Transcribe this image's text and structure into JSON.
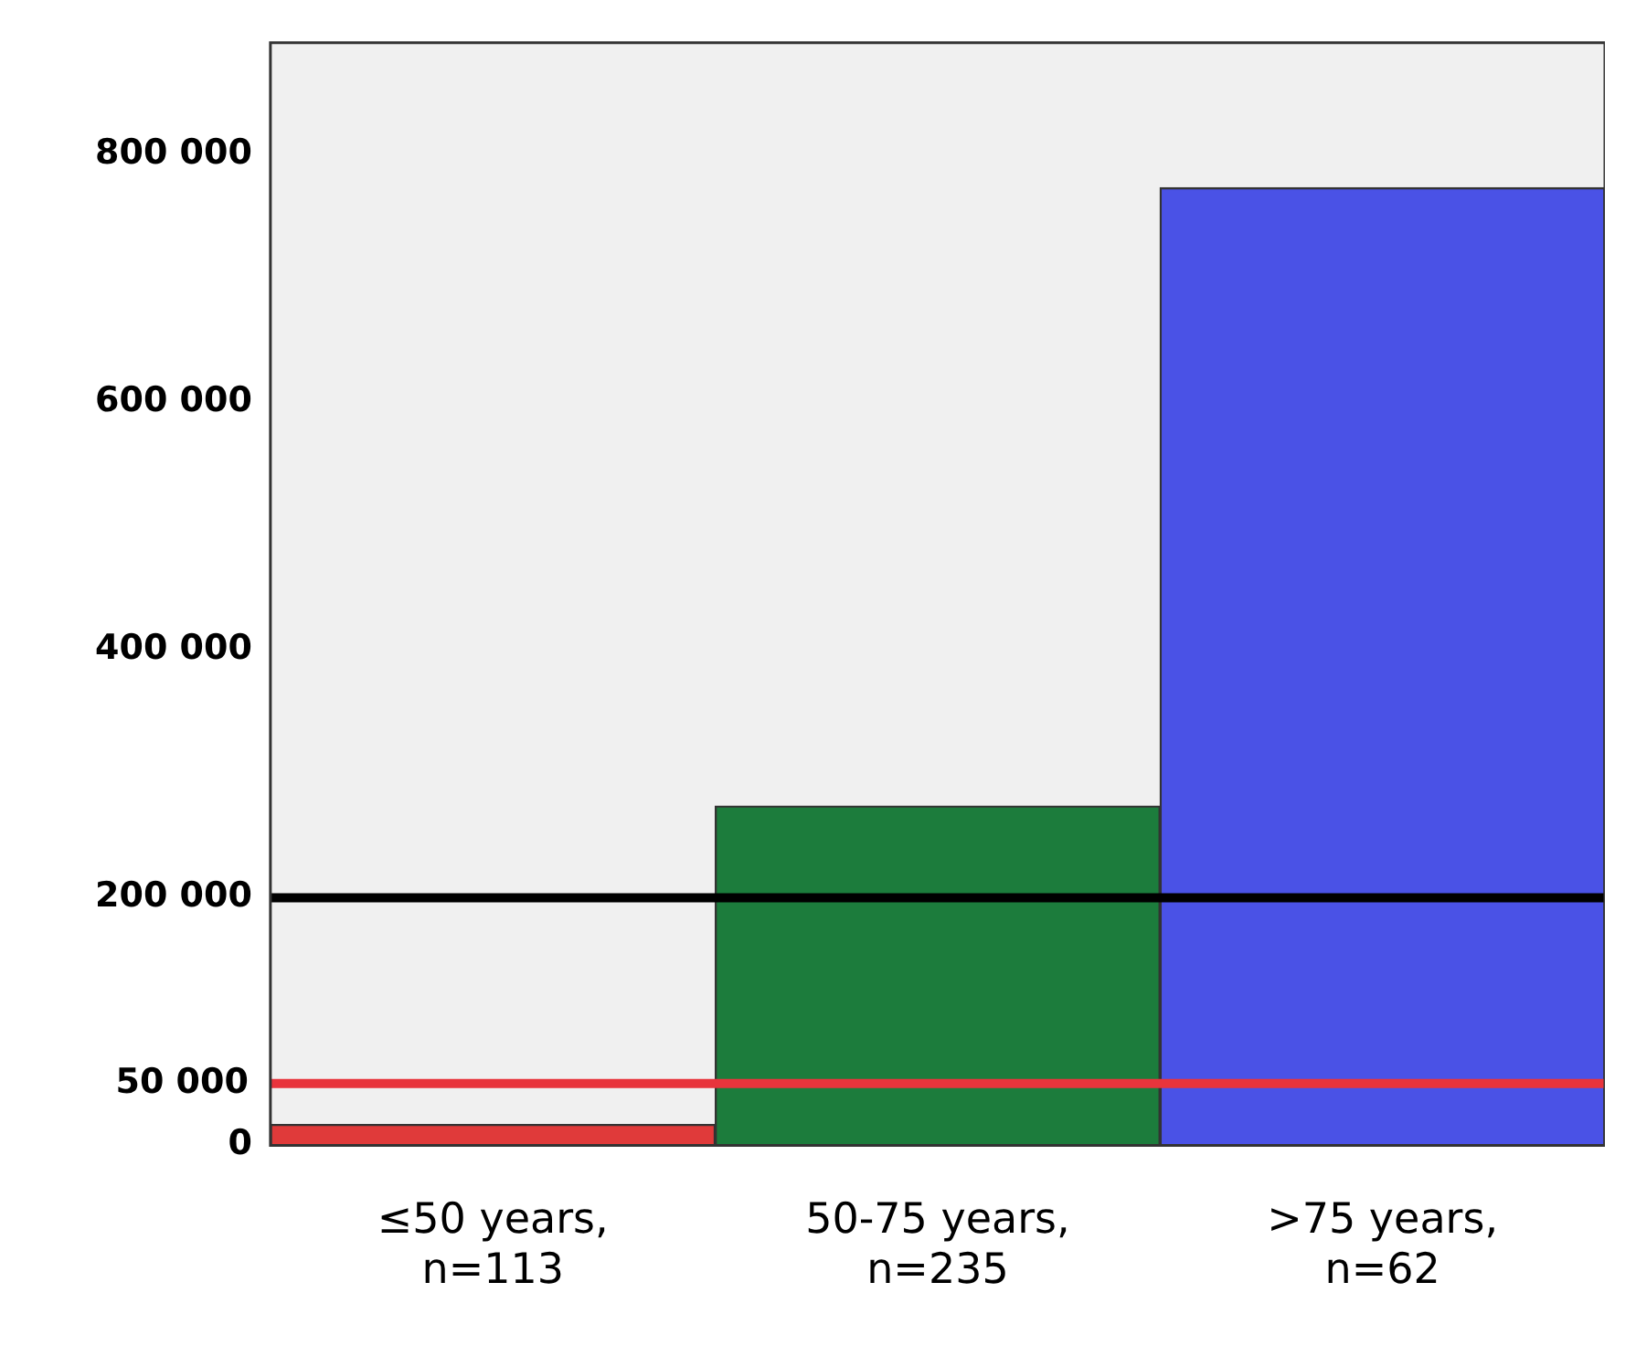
{
  "chart_data": {
    "type": "bar",
    "categories": [
      "≤50 years,\nn=113",
      "50-75 years,\nn=235",
      ">75 years,\nn=62"
    ],
    "values": [
      17000,
      274000,
      773000
    ],
    "colors": [
      "#e03a3a",
      "#1c7c3c",
      "#4a52e6"
    ],
    "ylim": [
      0,
      890000
    ],
    "yticks": [
      {
        "value": 0,
        "label": "0"
      },
      {
        "value": 200000,
        "label": "200 000"
      },
      {
        "value": 400000,
        "label": "400 000"
      },
      {
        "value": 600000,
        "label": "600 000"
      },
      {
        "value": 800000,
        "label": "800 000"
      }
    ],
    "ref_lines": [
      {
        "axis": "y",
        "value": 200000,
        "label": null,
        "color": "#000000"
      },
      {
        "axis": "y",
        "value": 50000,
        "label": "50 000",
        "color": "#e8343c"
      }
    ],
    "grid": false,
    "legend": false
  }
}
